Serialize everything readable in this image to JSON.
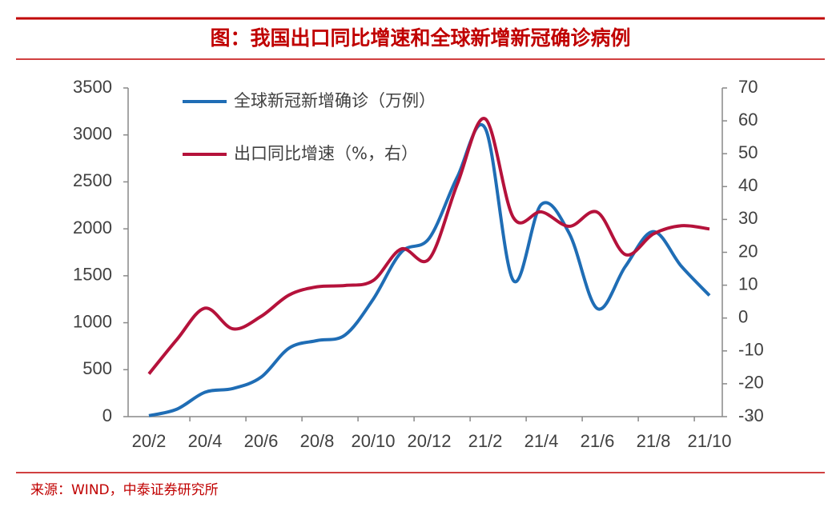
{
  "chart_data": {
    "type": "line",
    "title": "图：我国出口同比增速和全球新增新冠确诊病例",
    "source": "来源：WIND，中泰证券研究所",
    "categories": [
      "20/2",
      null,
      "20/4",
      null,
      "20/6",
      null,
      "20/8",
      null,
      "20/10",
      null,
      "20/12",
      null,
      "21/2",
      null,
      "21/4",
      null,
      "21/6",
      null,
      "21/8",
      null,
      "21/10"
    ],
    "series": [
      {
        "name": "全球新冠新增确诊（万例）",
        "color": "#1f6db5",
        "values": [
          10,
          80,
          260,
          300,
          420,
          730,
          810,
          870,
          1250,
          1750,
          1900,
          2550,
          3070,
          1450,
          2260,
          1950,
          1150,
          1600,
          1970,
          1600,
          1290
        ]
      },
      {
        "name": "出口同比增速（%，右）",
        "color": "#b5123b",
        "axis": "y2",
        "values": [
          -17,
          -6.5,
          3,
          -3.3,
          0.5,
          7,
          9.5,
          9.9,
          11.4,
          21,
          18,
          40.7,
          60.6,
          30.6,
          32.3,
          27.9,
          32.2,
          19.3,
          25.6,
          28.1,
          27.1
        ]
      }
    ],
    "ylim": [
      0,
      3500
    ],
    "yticks": [
      0,
      500,
      1000,
      1500,
      2000,
      2500,
      3000,
      3500
    ],
    "y2lim": [
      -30,
      70
    ],
    "y2ticks": [
      -30,
      -20,
      -10,
      0,
      10,
      20,
      30,
      40,
      50,
      60,
      70
    ]
  }
}
